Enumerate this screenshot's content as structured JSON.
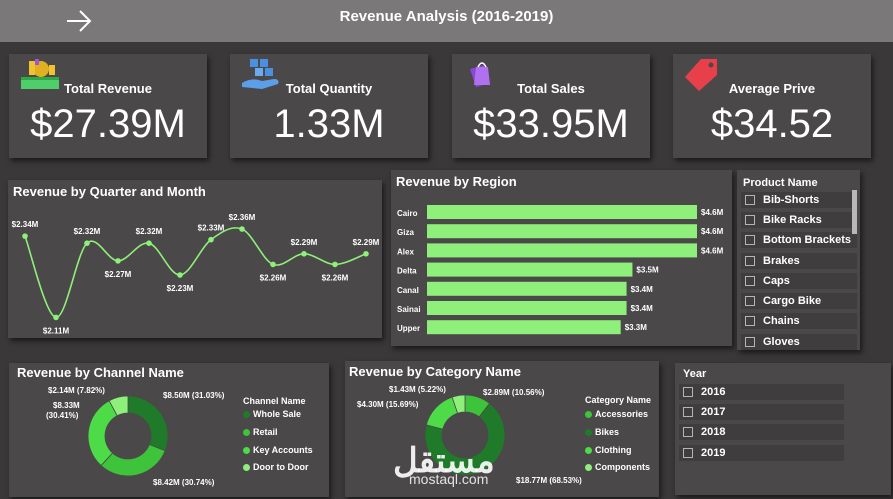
{
  "header": {
    "title": "Revenue Analysis (2016-2019)"
  },
  "kpis": [
    {
      "label": "Total Revenue",
      "value": "$27.39M",
      "icon": "money-bag-icon"
    },
    {
      "label": "Total Quantity",
      "value": "1.33M",
      "icon": "boxes-hand-icon"
    },
    {
      "label": "Total Sales",
      "value": "$33.95M",
      "icon": "shopping-bags-icon"
    },
    {
      "label": "Average Prive",
      "value": "$34.52",
      "icon": "price-tag-icon"
    }
  ],
  "quarter_chart": {
    "title": "Revenue by Quarter and Month",
    "labels": [
      "$2.34M",
      "$2.11M",
      "$2.32M",
      "$2.27M",
      "$2.32M",
      "$2.23M",
      "$2.33M",
      "$2.36M",
      "$2.26M",
      "$2.29M",
      "$2.26M",
      "$2.29M"
    ]
  },
  "region_chart": {
    "title": "Revenue by Region",
    "labels": [
      "$4.6M",
      "$4.6M",
      "$4.6M",
      "$3.5M",
      "$3.4M",
      "$3.4M",
      "$3.3M"
    ]
  },
  "channel_chart": {
    "title": "Revenue by Channel Name",
    "legend_title": "Channel Name",
    "slice_labels": [
      "$8.50M (31.03%)",
      "$8.42M (30.74%)",
      "$8.33M",
      "(30.41%)",
      "$2.14M (7.82%)"
    ]
  },
  "category_chart": {
    "title": "Revenue by Category Name",
    "legend_title": "Category Name",
    "slice_labels": [
      "$2.89M (10.56%)",
      "$18.77M (68.53%)",
      "$4.30M (15.69%)",
      "$1.43M (5.22%)"
    ]
  },
  "chart_data": [
    {
      "type": "line",
      "title": "Revenue by Quarter and Month",
      "x": [
        1,
        2,
        3,
        4,
        5,
        6,
        7,
        8,
        9,
        10,
        11,
        12
      ],
      "values": [
        2.34,
        2.11,
        2.32,
        2.27,
        2.32,
        2.23,
        2.33,
        2.36,
        2.26,
        2.29,
        2.26,
        2.29
      ],
      "ylim": [
        2.08,
        2.38
      ],
      "grid": false,
      "color": "#8ef07a"
    },
    {
      "type": "bar",
      "orientation": "horizontal",
      "title": "Revenue by Region",
      "categories": [
        "Cairo",
        "Giza",
        "Alex",
        "Delta",
        "Canal",
        "Sainai",
        "Upper"
      ],
      "values": [
        4.6,
        4.6,
        4.6,
        3.5,
        3.4,
        3.4,
        3.3
      ],
      "grid": false,
      "color": "#8ef07a"
    },
    {
      "type": "pie",
      "donut": true,
      "title": "Revenue by Channel Name",
      "legend_placement": "right",
      "series": [
        {
          "name": "Whole Sale",
          "value": 8.5,
          "color": "#1f7a2a"
        },
        {
          "name": "Retail",
          "value": 8.42,
          "color": "#3ec43a"
        },
        {
          "name": "Key Accounts",
          "value": 8.33,
          "color": "#4ddb48"
        },
        {
          "name": "Door to Door",
          "value": 2.14,
          "color": "#8ef07a"
        }
      ]
    },
    {
      "type": "pie",
      "donut": true,
      "title": "Revenue by Category Name",
      "legend_placement": "right",
      "series": [
        {
          "name": "Accessories",
          "value": 2.89,
          "color": "#3ec43a"
        },
        {
          "name": "Bikes",
          "value": 18.77,
          "color": "#1f7a2a"
        },
        {
          "name": "Clothing",
          "value": 4.3,
          "color": "#4ddb48"
        },
        {
          "name": "Components",
          "value": 1.43,
          "color": "#8ef07a"
        }
      ]
    }
  ],
  "product_slicer": {
    "title": "Product Name",
    "items": [
      "Bib-Shorts",
      "Bike Racks",
      "Bottom Brackets",
      "Brakes",
      "Caps",
      "Cargo Bike",
      "Chains",
      "Gloves"
    ]
  },
  "year_slicer": {
    "title": "Year",
    "items": [
      "2016",
      "2017",
      "2018",
      "2019"
    ]
  },
  "watermark": {
    "text": "mostaql.com"
  }
}
